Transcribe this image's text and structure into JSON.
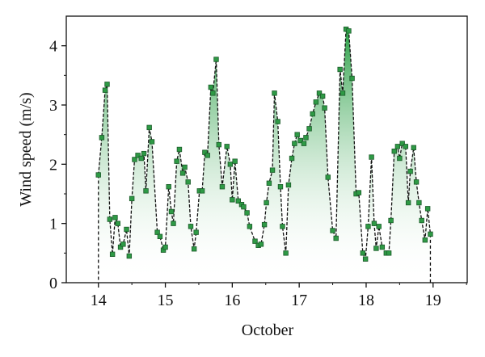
{
  "chart_data": {
    "type": "line",
    "xlabel": "October",
    "ylabel": "Wind speed (m/s)",
    "xlim": [
      13.52,
      19.51
    ],
    "ylim": [
      0,
      4.5
    ],
    "xticks": [
      14,
      15,
      16,
      17,
      18,
      19
    ],
    "yticks": [
      0,
      1,
      2,
      3,
      4
    ],
    "x": [
      14.0,
      14.05,
      14.1,
      14.13,
      14.17,
      14.21,
      14.25,
      14.29,
      14.33,
      14.37,
      14.42,
      14.46,
      14.5,
      14.54,
      14.59,
      14.64,
      14.68,
      14.71,
      14.76,
      14.8,
      14.88,
      14.92,
      14.97,
      15.0,
      15.05,
      15.09,
      15.12,
      15.17,
      15.21,
      15.26,
      15.29,
      15.34,
      15.38,
      15.43,
      15.46,
      15.51,
      15.55,
      15.59,
      15.63,
      15.68,
      15.71,
      15.76,
      15.8,
      15.85,
      15.92,
      15.97,
      16.0,
      16.04,
      16.09,
      16.14,
      16.17,
      16.22,
      16.26,
      16.34,
      16.39,
      16.43,
      16.48,
      16.51,
      16.55,
      16.6,
      16.63,
      16.68,
      16.72,
      16.75,
      16.8,
      16.84,
      16.89,
      16.93,
      16.97,
      17.02,
      17.07,
      17.1,
      17.15,
      17.2,
      17.25,
      17.3,
      17.35,
      17.38,
      17.43,
      17.5,
      17.55,
      17.61,
      17.65,
      17.7,
      17.74,
      17.79,
      17.85,
      17.89,
      17.95,
      17.99,
      18.03,
      18.08,
      18.12,
      18.15,
      18.19,
      18.24,
      18.3,
      18.34,
      18.37,
      18.42,
      18.47,
      18.5,
      18.54,
      18.59,
      18.63,
      18.66,
      18.71,
      18.75,
      18.79,
      18.83,
      18.88,
      18.92,
      18.96
    ],
    "series": [
      {
        "color": "#2e9a45",
        "values": [
          1.82,
          2.45,
          3.25,
          3.35,
          1.07,
          0.48,
          1.1,
          1.0,
          0.6,
          0.65,
          0.9,
          0.45,
          1.42,
          2.08,
          2.15,
          2.1,
          2.18,
          1.55,
          2.62,
          2.38,
          0.85,
          0.78,
          0.55,
          0.6,
          1.62,
          1.2,
          1.0,
          2.05,
          2.25,
          1.85,
          1.95,
          1.7,
          0.95,
          0.57,
          0.85,
          1.55,
          1.55,
          2.2,
          2.15,
          3.3,
          3.2,
          3.77,
          2.33,
          1.62,
          2.3,
          2.0,
          1.4,
          2.05,
          1.38,
          1.32,
          1.28,
          1.18,
          0.95,
          0.7,
          0.63,
          0.65,
          0.98,
          1.35,
          1.68,
          1.9,
          3.2,
          2.72,
          1.62,
          0.95,
          0.5,
          1.65,
          2.1,
          2.35,
          2.5,
          2.4,
          2.35,
          2.45,
          2.6,
          2.85,
          3.05,
          3.2,
          3.15,
          2.95,
          1.78,
          0.88,
          0.75,
          3.6,
          3.2,
          4.28,
          4.25,
          3.45,
          1.5,
          1.52,
          0.5,
          0.4,
          0.95,
          2.12,
          1.0,
          0.58,
          0.95,
          0.6,
          0.5,
          0.5,
          1.05,
          2.22,
          2.3,
          2.1,
          2.35,
          2.3,
          1.35,
          1.88,
          2.28,
          1.7,
          1.35,
          1.05,
          0.72,
          1.25,
          0.82
        ]
      }
    ]
  }
}
